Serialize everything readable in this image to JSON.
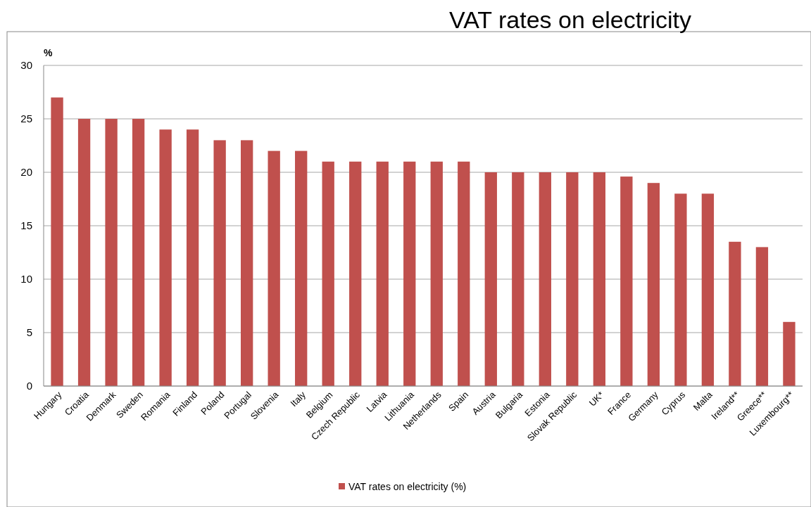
{
  "chart_data": {
    "type": "bar",
    "title": "VAT rates on electricity",
    "ylabel": "%",
    "categories": [
      "Hungary",
      "Croatia",
      "Denmark",
      "Sweden",
      "Romania",
      "Finland",
      "Poland",
      "Portugal",
      "Slovenia",
      "Italy",
      "Belgium",
      "Czech Republic",
      "Latvia",
      "Lithuania",
      "Netherlands",
      "Spain",
      "Austria",
      "Bulgaria",
      "Estonia",
      "Slovak Republic",
      "UK*",
      "France",
      "Germany",
      "Cyprus",
      "Malta",
      "Ireland**",
      "Greece**",
      "Luxembourg**"
    ],
    "series": [
      {
        "name": "VAT rates on electricity (%)",
        "color": "#c0504d",
        "values": [
          27,
          25,
          25,
          25,
          24,
          24,
          23,
          23,
          22,
          22,
          21,
          21,
          21,
          21,
          21,
          21,
          20,
          20,
          20,
          20,
          20,
          19.6,
          19,
          18,
          18,
          13.5,
          13,
          6
        ]
      }
    ],
    "ylim": [
      0,
      30
    ],
    "yticks": [
      0,
      5,
      10,
      15,
      20,
      25,
      30
    ],
    "grid": "y",
    "legend": "bottom"
  }
}
